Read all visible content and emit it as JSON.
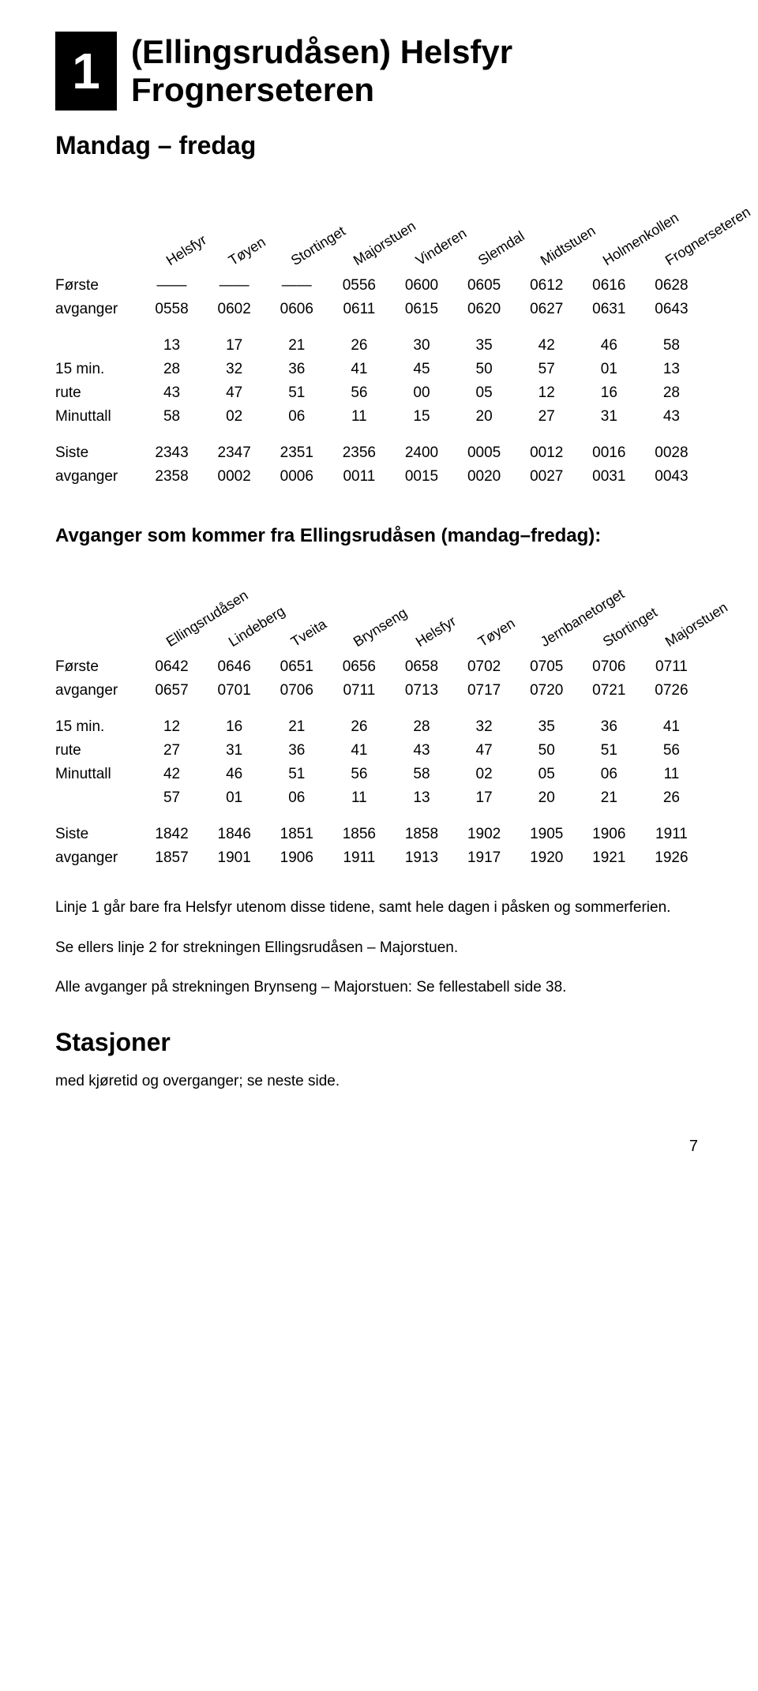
{
  "route": {
    "number": "1",
    "title_line1": "(Ellingsrudåsen) Helsfyr",
    "title_line2": "Frognerseteren"
  },
  "day_range": "Mandag – fredag",
  "table1": {
    "stops": [
      "Helsfyr",
      "Tøyen",
      "Stortinget",
      "Majorstuen",
      "Vinderen",
      "Slemdal",
      "Midtstuen",
      "Holmenkollen",
      "Frognerseteren"
    ],
    "blocks": [
      {
        "rows": [
          {
            "label": "Første",
            "cells": [
              "——",
              "——",
              "——",
              "0556",
              "0600",
              "0605",
              "0612",
              "0616",
              "0628"
            ]
          },
          {
            "label": "avganger",
            "cells": [
              "0558",
              "0602",
              "0606",
              "0611",
              "0615",
              "0620",
              "0627",
              "0631",
              "0643"
            ]
          }
        ]
      },
      {
        "rows": [
          {
            "label": "",
            "cells": [
              "13",
              "17",
              "21",
              "26",
              "30",
              "35",
              "42",
              "46",
              "58"
            ]
          },
          {
            "label": "15 min.",
            "cells": [
              "28",
              "32",
              "36",
              "41",
              "45",
              "50",
              "57",
              "01",
              "13"
            ]
          },
          {
            "label": "rute",
            "cells": [
              "43",
              "47",
              "51",
              "56",
              "00",
              "05",
              "12",
              "16",
              "28"
            ]
          },
          {
            "label": "Minuttall",
            "cells": [
              "58",
              "02",
              "06",
              "11",
              "15",
              "20",
              "27",
              "31",
              "43"
            ]
          }
        ]
      },
      {
        "rows": [
          {
            "label": "Siste",
            "cells": [
              "2343",
              "2347",
              "2351",
              "2356",
              "2400",
              "0005",
              "0012",
              "0016",
              "0028"
            ]
          },
          {
            "label": "avganger",
            "cells": [
              "2358",
              "0002",
              "0006",
              "0011",
              "0015",
              "0020",
              "0027",
              "0031",
              "0043"
            ]
          }
        ]
      }
    ]
  },
  "sub_heading": "Avganger som kommer fra Ellingsrudåsen (mandag–fredag):",
  "table2": {
    "stops": [
      "Ellingsrudåsen",
      "Lindeberg",
      "Tveita",
      "Brynseng",
      "Helsfyr",
      "Tøyen",
      "Jernbanetorget",
      "Stortinget",
      "Majorstuen"
    ],
    "blocks": [
      {
        "rows": [
          {
            "label": "Første",
            "cells": [
              "0642",
              "0646",
              "0651",
              "0656",
              "0658",
              "0702",
              "0705",
              "0706",
              "0711"
            ]
          },
          {
            "label": "avganger",
            "cells": [
              "0657",
              "0701",
              "0706",
              "0711",
              "0713",
              "0717",
              "0720",
              "0721",
              "0726"
            ]
          }
        ]
      },
      {
        "rows": [
          {
            "label": "15 min.",
            "cells": [
              "12",
              "16",
              "21",
              "26",
              "28",
              "32",
              "35",
              "36",
              "41"
            ]
          },
          {
            "label": "rute",
            "cells": [
              "27",
              "31",
              "36",
              "41",
              "43",
              "47",
              "50",
              "51",
              "56"
            ]
          },
          {
            "label": "Minuttall",
            "cells": [
              "42",
              "46",
              "51",
              "56",
              "58",
              "02",
              "05",
              "06",
              "11"
            ]
          },
          {
            "label": "",
            "cells": [
              "57",
              "01",
              "06",
              "11",
              "13",
              "17",
              "20",
              "21",
              "26"
            ]
          }
        ]
      },
      {
        "rows": [
          {
            "label": "Siste",
            "cells": [
              "1842",
              "1846",
              "1851",
              "1856",
              "1858",
              "1902",
              "1905",
              "1906",
              "1911"
            ]
          },
          {
            "label": "avganger",
            "cells": [
              "1857",
              "1901",
              "1906",
              "1911",
              "1913",
              "1917",
              "1920",
              "1921",
              "1926"
            ]
          }
        ]
      }
    ]
  },
  "notes": [
    "Linje 1 går bare fra Helsfyr utenom disse tidene, samt hele dagen i påsken og sommerferien.",
    "Se ellers linje 2 for strekningen Ellingsrudåsen – Majorstuen.",
    "Alle avganger på strekningen Brynseng – Majorstuen: Se fellestabell side 38."
  ],
  "stasjoner_heading": "Stasjoner",
  "stasjoner_sub": "med kjøretid og overganger; se neste side.",
  "page_number": "7"
}
